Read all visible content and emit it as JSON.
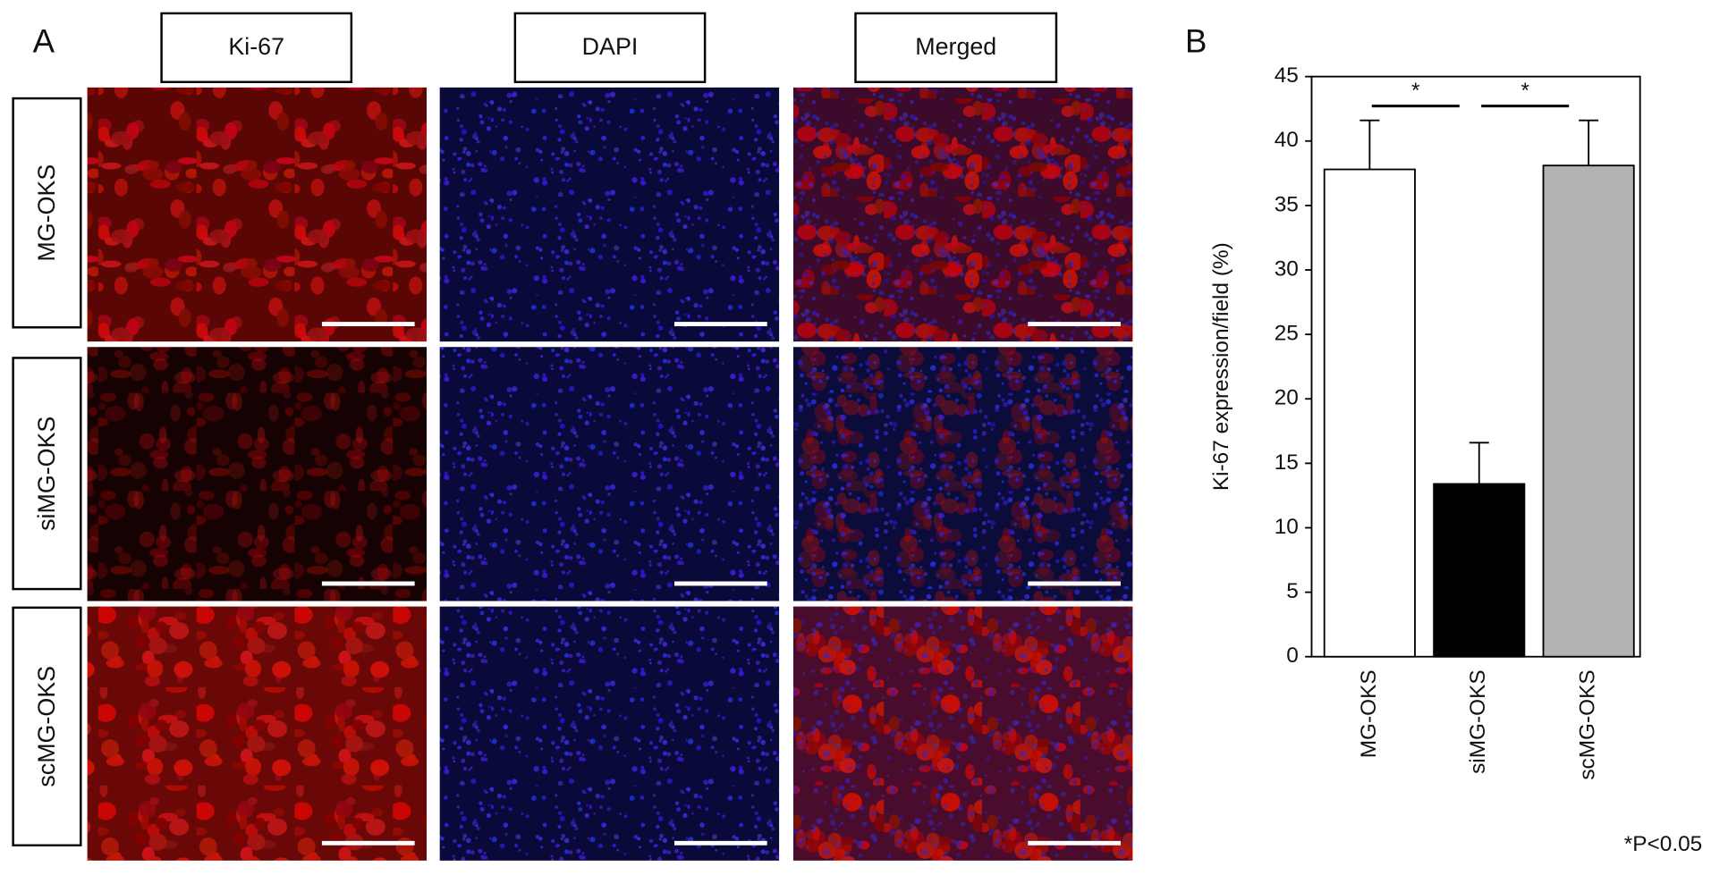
{
  "figure": {
    "panel_a_label": "A",
    "panel_b_label": "B",
    "column_headers": [
      "Ki-67",
      "DAPI",
      "Merged"
    ],
    "row_labels": [
      "MG-OKS",
      "siMG-OKS",
      "scMG-OKS"
    ]
  },
  "chart_data": {
    "type": "bar",
    "ylabel": "Ki-67 expression/field (%)",
    "categories": [
      "MG-OKS",
      "siMG-OKS",
      "scMG-OKS"
    ],
    "values": [
      37.8,
      13.4,
      38.1
    ],
    "errors": [
      3.8,
      3.2,
      3.5
    ],
    "colors": [
      "#ffffff",
      "#000000",
      "#b3b3b3"
    ],
    "ylim": [
      0,
      45
    ],
    "yticks": [
      0,
      5,
      10,
      15,
      20,
      25,
      30,
      35,
      40,
      45
    ],
    "significance": [
      "*",
      "*"
    ],
    "note": "*P<0.05"
  }
}
